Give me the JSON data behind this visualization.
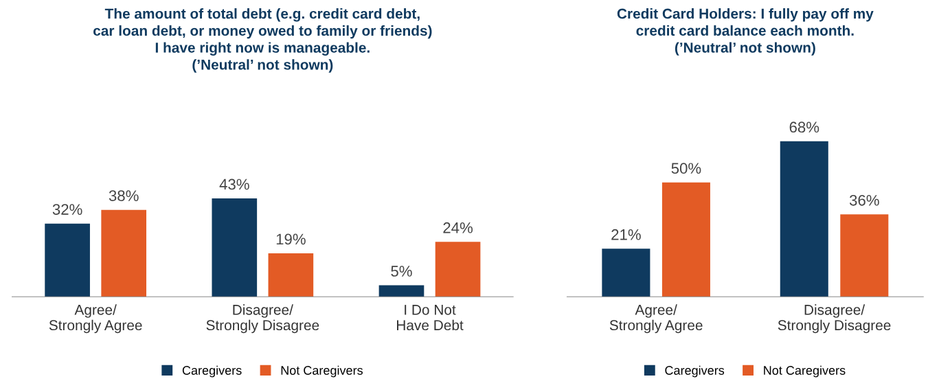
{
  "chart_data": [
    {
      "type": "bar",
      "title": "The amount of total debt (e.g. credit card debt,\ncar loan debt, or money owed to family or friends)\nI have right now is manageable.\n(’Neutral’ not shown)",
      "categories": [
        "Agree/\nStrongly Agree",
        "Disagree/\nStrongly Disagree",
        "I Do Not\nHave Debt"
      ],
      "series": [
        {
          "name": "Caregivers",
          "color": "#0f3a5f",
          "values": [
            32,
            43,
            5
          ],
          "value_labels": [
            "32%",
            "43%",
            "5%"
          ]
        },
        {
          "name": "Not Caregivers",
          "color": "#e35b25",
          "values": [
            38,
            19,
            24
          ],
          "value_labels": [
            "38%",
            "19%",
            "24%"
          ]
        }
      ],
      "legend": "bottom",
      "grid": false
    },
    {
      "type": "bar",
      "title": "Credit Card Holders: I fully pay off my\ncredit card balance each month.\n(’Neutral’ not shown)",
      "categories": [
        "Agree/\nStrongly Agree",
        "Disagree/\nStrongly Disagree"
      ],
      "series": [
        {
          "name": "Caregivers",
          "color": "#0f3a5f",
          "values": [
            21,
            68
          ],
          "value_labels": [
            "21%",
            "68%"
          ]
        },
        {
          "name": "Not Caregivers",
          "color": "#e35b25",
          "values": [
            50,
            36
          ],
          "value_labels": [
            "50%",
            "36%"
          ]
        }
      ],
      "legend": "bottom",
      "grid": false
    }
  ]
}
